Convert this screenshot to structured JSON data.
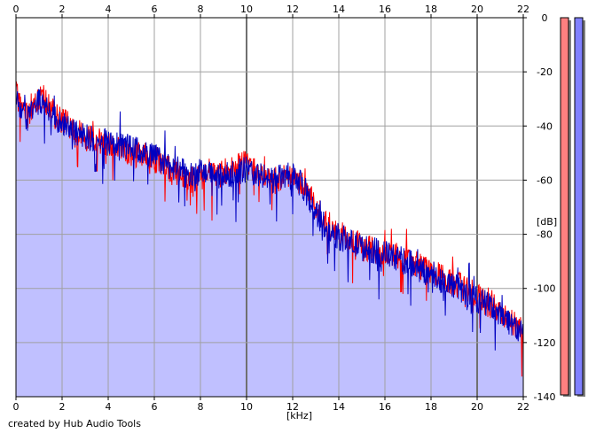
{
  "chart_data": {
    "type": "line",
    "title": "",
    "xlabel": "[kHz]",
    "ylabel": "[dB]",
    "xlim": [
      0,
      22
    ],
    "ylim": [
      -140,
      0
    ],
    "x_ticks_top": [
      "0",
      "2",
      "4",
      "6",
      "8",
      "10",
      "12",
      "14",
      "16",
      "18",
      "20",
      "22"
    ],
    "x_ticks_bottom": [
      "0",
      "2",
      "4",
      "6",
      "8",
      "10",
      "12",
      "14",
      "16",
      "18",
      "20",
      "22"
    ],
    "y_ticks": [
      "0",
      "-20",
      "-40",
      "-60",
      "-80",
      "-100",
      "-120",
      "-140"
    ],
    "grid": true,
    "fill_color": "#c0c0ff",
    "series": [
      {
        "color": "#ff0000",
        "x": [
          0,
          0.25,
          0.5,
          0.75,
          1.0,
          1.25,
          1.5,
          2.0,
          2.5,
          3.0,
          3.5,
          4.0,
          4.5,
          5.0,
          5.5,
          6.0,
          6.5,
          7.0,
          7.5,
          8.0,
          8.5,
          9.0,
          9.5,
          10.0,
          10.5,
          11.0,
          11.5,
          12.0,
          12.5,
          13.0,
          13.5,
          14.0,
          14.5,
          15.0,
          15.5,
          16.0,
          16.5,
          17.0,
          17.5,
          18.0,
          18.5,
          19.0,
          19.5,
          20.0,
          20.5,
          21.0,
          21.5,
          22.0
        ],
        "y": [
          -28,
          -34,
          -36,
          -33,
          -30,
          -31,
          -34,
          -38,
          -41,
          -44,
          -45,
          -46,
          -48,
          -50,
          -51,
          -52,
          -55,
          -57,
          -60,
          -59,
          -58,
          -57,
          -55,
          -54,
          -57,
          -60,
          -59,
          -58,
          -62,
          -70,
          -77,
          -80,
          -82,
          -84,
          -86,
          -87,
          -88,
          -89,
          -92,
          -94,
          -96,
          -98,
          -100,
          -103,
          -106,
          -108,
          -112,
          -116
        ]
      },
      {
        "color": "#0000c0",
        "x": [
          0,
          0.25,
          0.5,
          0.75,
          1.0,
          1.25,
          1.5,
          2.0,
          2.5,
          3.0,
          3.5,
          4.0,
          4.5,
          5.0,
          5.5,
          6.0,
          6.5,
          7.0,
          7.5,
          8.0,
          8.5,
          9.0,
          9.5,
          10.0,
          10.5,
          11.0,
          11.5,
          12.0,
          12.5,
          13.0,
          13.5,
          14.0,
          14.5,
          15.0,
          15.5,
          16.0,
          16.5,
          17.0,
          17.5,
          18.0,
          18.5,
          19.0,
          19.5,
          20.0,
          20.5,
          21.0,
          21.5,
          22.0
        ],
        "y": [
          -30,
          -35,
          -37,
          -34,
          -31,
          -32,
          -35,
          -39,
          -42,
          -44,
          -45,
          -46,
          -47,
          -48,
          -50,
          -51,
          -54,
          -56,
          -58,
          -57,
          -58,
          -59,
          -57,
          -56,
          -58,
          -60,
          -59,
          -58,
          -63,
          -72,
          -78,
          -81,
          -83,
          -85,
          -86,
          -87,
          -89,
          -90,
          -93,
          -95,
          -97,
          -99,
          -102,
          -104,
          -106,
          -109,
          -113,
          -117
        ]
      }
    ],
    "level_bars": [
      {
        "color": "#ff8080"
      },
      {
        "color": "#8080ff"
      }
    ]
  },
  "footer": {
    "credit": "created by Hub Audio Tools"
  }
}
